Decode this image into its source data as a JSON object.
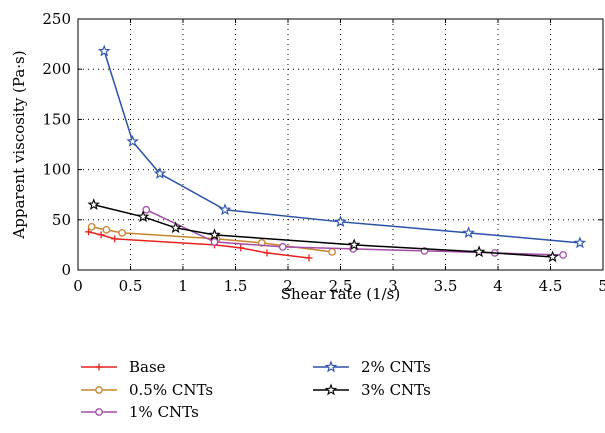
{
  "chart_data": {
    "type": "line",
    "title": "",
    "xlabel": "Shear rate (1/s)",
    "ylabel": "Apparent viscosity (Pa·s)",
    "xlim": [
      0,
      5
    ],
    "ylim": [
      0,
      250
    ],
    "xticks": [
      "0",
      "0.5",
      "1",
      "1.5",
      "2",
      "2.5",
      "3",
      "3.5",
      "4",
      "4.5",
      "5"
    ],
    "yticks": [
      "0",
      "50",
      "100",
      "150",
      "200",
      "250"
    ],
    "grid": true,
    "legend_position": "bottom",
    "series": [
      {
        "name": "Base",
        "color": "#e8231e",
        "marker": "plus",
        "x": [
          0.1,
          0.22,
          0.35,
          1.3,
          1.55,
          1.8,
          2.2
        ],
        "y": [
          38,
          35,
          31,
          25,
          22,
          17,
          12
        ]
      },
      {
        "name": "0.5% CNTs",
        "color": "#c8832c",
        "marker": "circle",
        "x": [
          0.13,
          0.27,
          0.42,
          1.32,
          1.75,
          2.42
        ],
        "y": [
          43,
          40,
          37,
          31,
          27,
          18
        ]
      },
      {
        "name": "1% CNTs",
        "color": "#a44ea6",
        "marker": "circle",
        "x": [
          0.65,
          1.3,
          1.95,
          2.62,
          3.3,
          3.97,
          4.62
        ],
        "y": [
          60,
          28,
          23,
          21,
          19,
          17,
          15
        ]
      },
      {
        "name": "2% CNTs",
        "color": "#2a52a8",
        "marker": "star",
        "x": [
          0.25,
          0.52,
          0.78,
          1.4,
          2.5,
          3.72,
          4.78
        ],
        "y": [
          218,
          128,
          96,
          60,
          48,
          37,
          27
        ]
      },
      {
        "name": "3% CNTs",
        "color": "#000000",
        "marker": "star",
        "x": [
          0.15,
          0.62,
          0.93,
          1.3,
          2.63,
          3.82,
          4.52
        ],
        "y": [
          65,
          53,
          42,
          35,
          25,
          18,
          13
        ]
      }
    ]
  }
}
